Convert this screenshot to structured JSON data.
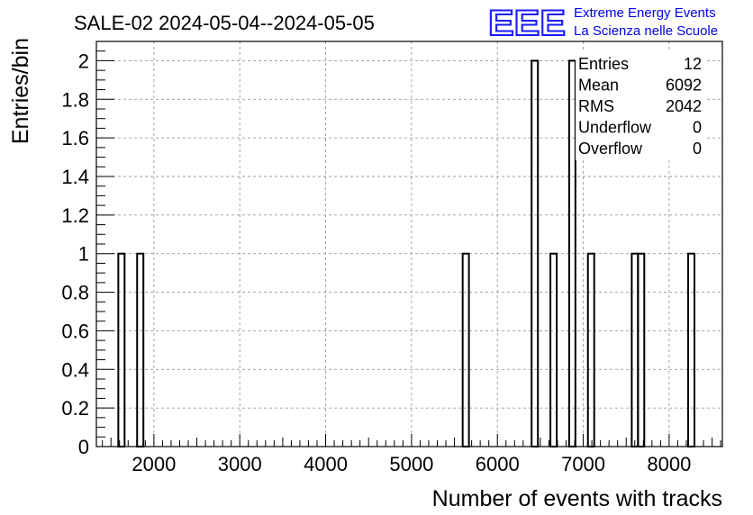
{
  "header": {
    "title": "SALE-02 2024-05-04--2024-05-05",
    "logo": "EEE",
    "brand_line1": "Extreme Energy Events",
    "brand_line2": "La Scienza nelle Scuole"
  },
  "stats": {
    "rows": [
      {
        "label": "Entries",
        "value": "12"
      },
      {
        "label": "Mean",
        "value": "6092"
      },
      {
        "label": "RMS",
        "value": "2042"
      },
      {
        "label": "Underflow",
        "value": "0"
      },
      {
        "label": "Overflow",
        "value": "0"
      }
    ]
  },
  "colors": {
    "brand": "#0000ee",
    "logo": "#1a1aff",
    "grid": "#9a9a9a",
    "line": "#000000"
  },
  "chart_data": {
    "type": "bar",
    "histogram": true,
    "xlabel": "Number of events with tracks",
    "ylabel": "Entries/bin",
    "xlim": [
      1330,
      8620
    ],
    "ylim": [
      0,
      2.1
    ],
    "xticks": [
      2000,
      3000,
      4000,
      5000,
      6000,
      7000,
      8000
    ],
    "yticks": [
      0,
      0.2,
      0.4,
      0.6,
      0.8,
      1,
      1.2,
      1.4,
      1.6,
      1.8,
      2
    ],
    "ytick_labels": [
      "0",
      "0.2",
      "0.4",
      "0.6",
      "0.8",
      "1",
      "1.2",
      "1.4",
      "1.6",
      "1.8",
      "2"
    ],
    "grid": true,
    "bin_width": 73,
    "bins": [
      {
        "x": 1622,
        "value": 1
      },
      {
        "x": 1841,
        "value": 1
      },
      {
        "x": 5632,
        "value": 1
      },
      {
        "x": 6435,
        "value": 2
      },
      {
        "x": 6654,
        "value": 1
      },
      {
        "x": 6872,
        "value": 2
      },
      {
        "x": 7091,
        "value": 1
      },
      {
        "x": 7601,
        "value": 1
      },
      {
        "x": 7674,
        "value": 1
      },
      {
        "x": 8258,
        "value": 1
      }
    ]
  }
}
